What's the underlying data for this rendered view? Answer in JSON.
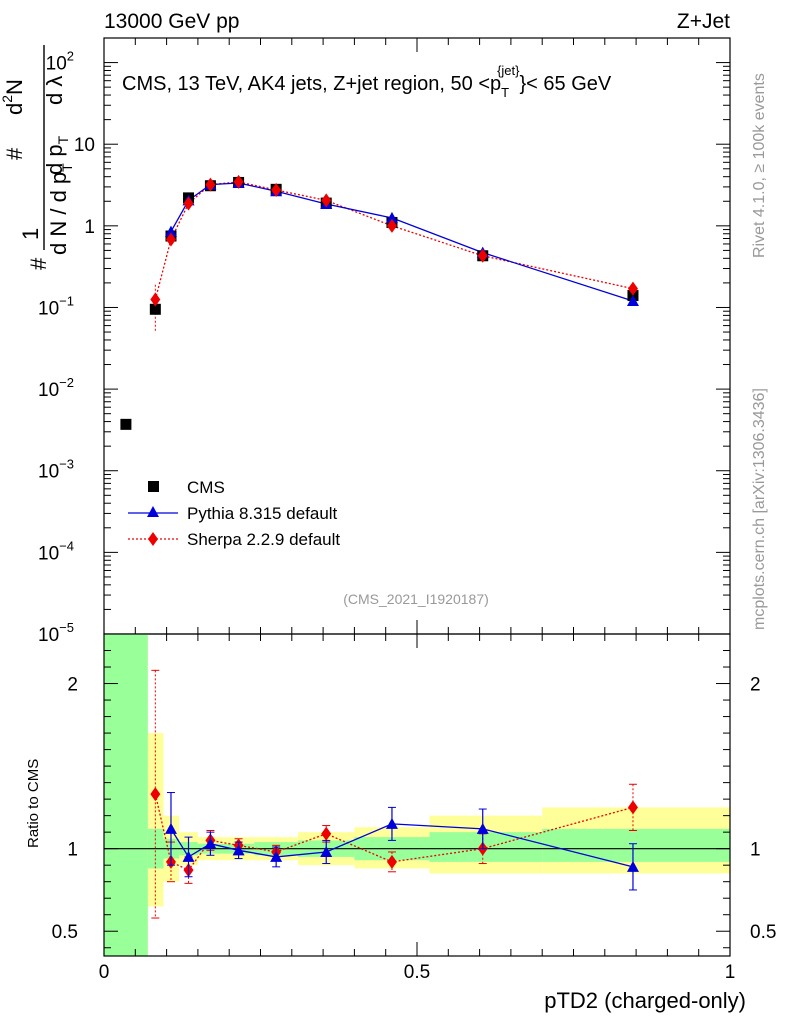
{
  "header": {
    "energy_label": "13000 GeV pp",
    "process_label": "Z+Jet"
  },
  "side_labels": {
    "rivet": "Rivet 4.1.0, ≥ 100k events",
    "mcplots": "mcplots.cern.ch [arXiv:1306.3436]"
  },
  "chart_data": {
    "type": "scatter",
    "title": "CMS, 13 TeV, AK4 jets, Z+jet region, 50 <p",
    "title_sup": "{jet}",
    "title_sub": "T",
    "title_tail": "}< 65 GeV",
    "watermark": "(CMS_2021_I1920187)",
    "xlabel": "pTD2 (charged-only)",
    "ylabel_top_parts": [
      "#",
      "1",
      "d N / d p",
      "T",
      "#",
      "d p",
      "T",
      "d",
      "2",
      "N",
      "d λ"
    ],
    "ylabel_ratio": "Ratio to CMS",
    "xlim": [
      0,
      1
    ],
    "ylim_main": [
      1e-05,
      200
    ],
    "ylim_ratio": [
      0.35,
      2.3
    ],
    "x_ticks": [
      "0",
      "0.5",
      "1"
    ],
    "x_tick_values": [
      0,
      0.5,
      1
    ],
    "y_ticks_main": [
      {
        "value": 1e-05,
        "base": "10",
        "exp": "−5"
      },
      {
        "value": 0.0001,
        "base": "10",
        "exp": "−4"
      },
      {
        "value": 0.001,
        "base": "10",
        "exp": "−3"
      },
      {
        "value": 0.01,
        "base": "10",
        "exp": "−2"
      },
      {
        "value": 0.1,
        "base": "10",
        "exp": "−1"
      },
      {
        "value": 1,
        "base": "1",
        "exp": ""
      },
      {
        "value": 10,
        "base": "10",
        "exp": ""
      },
      {
        "value": 100,
        "base": "10",
        "exp": "2"
      }
    ],
    "y_ticks_ratio": [
      {
        "value": 0.5,
        "label": "0.5"
      },
      {
        "value": 1,
        "label": "1"
      },
      {
        "value": 2,
        "label": "2"
      }
    ],
    "legend": [
      "CMS",
      "Pythia 8.315 default",
      "Sherpa 2.2.9 default"
    ],
    "colors": {
      "data": "#000000",
      "pythia": "#0000dd",
      "sherpa": "#ee0000",
      "band_inner": "#99ff99",
      "band_outer": "#ffff99"
    },
    "bins": [
      0.0,
      0.07,
      0.095,
      0.12,
      0.15,
      0.19,
      0.24,
      0.31,
      0.4,
      0.52,
      0.7,
      1.0
    ],
    "series": [
      {
        "name": "CMS",
        "x": [
          0.035,
          0.082,
          0.107,
          0.135,
          0.17,
          0.215,
          0.275,
          0.355,
          0.46,
          0.605,
          0.845
        ],
        "y": [
          0.0037,
          0.095,
          0.75,
          2.2,
          3.1,
          3.4,
          2.8,
          1.9,
          1.1,
          0.43,
          0.14
        ]
      },
      {
        "name": "Pythia 8.315 default",
        "x": [
          0.107,
          0.135,
          0.17,
          0.215,
          0.275,
          0.355,
          0.46,
          0.605,
          0.845
        ],
        "y": [
          0.85,
          2.05,
          3.2,
          3.35,
          2.65,
          1.85,
          1.25,
          0.47,
          0.12
        ]
      },
      {
        "name": "Sherpa 2.2.9 default",
        "x": [
          0.082,
          0.107,
          0.135,
          0.17,
          0.215,
          0.275,
          0.355,
          0.46,
          0.605,
          0.845
        ],
        "y": [
          0.125,
          0.68,
          1.88,
          3.2,
          3.45,
          2.75,
          2.05,
          1.0,
          0.43,
          0.17
        ]
      }
    ],
    "ratio": {
      "pythia": {
        "x": [
          0.107,
          0.135,
          0.17,
          0.215,
          0.275,
          0.355,
          0.46,
          0.605,
          0.845
        ],
        "y": [
          1.12,
          0.95,
          1.03,
          0.99,
          0.95,
          0.98,
          1.15,
          1.12,
          0.89
        ],
        "err": [
          0.22,
          0.12,
          0.07,
          0.05,
          0.06,
          0.07,
          0.1,
          0.12,
          0.14
        ]
      },
      "sherpa": {
        "x": [
          0.082,
          0.107,
          0.135,
          0.17,
          0.215,
          0.275,
          0.355,
          0.46,
          0.605,
          0.845
        ],
        "y": [
          1.33,
          0.92,
          0.87,
          1.05,
          1.02,
          0.98,
          1.09,
          0.92,
          1.0,
          1.25
        ],
        "err": [
          0.75,
          0.12,
          0.08,
          0.06,
          0.04,
          0.04,
          0.05,
          0.06,
          0.09,
          0.14
        ]
      },
      "band_inner": [
        [
          0.1,
          10
        ],
        [
          0.88,
          1.12
        ],
        [
          0.94,
          1.06
        ],
        [
          0.96,
          1.04
        ],
        [
          0.97,
          1.03
        ],
        [
          0.97,
          1.03
        ],
        [
          0.96,
          1.04
        ],
        [
          0.95,
          1.05
        ],
        [
          0.93,
          1.07
        ],
        [
          0.92,
          1.1
        ],
        [
          0.92,
          1.12
        ]
      ],
      "band_outer": [
        [
          0.1,
          10
        ],
        [
          0.65,
          1.7
        ],
        [
          0.8,
          1.2
        ],
        [
          0.9,
          1.1
        ],
        [
          0.93,
          1.07
        ],
        [
          0.93,
          1.07
        ],
        [
          0.93,
          1.07
        ],
        [
          0.9,
          1.1
        ],
        [
          0.88,
          1.13
        ],
        [
          0.85,
          1.2
        ],
        [
          0.85,
          1.25
        ]
      ]
    }
  }
}
